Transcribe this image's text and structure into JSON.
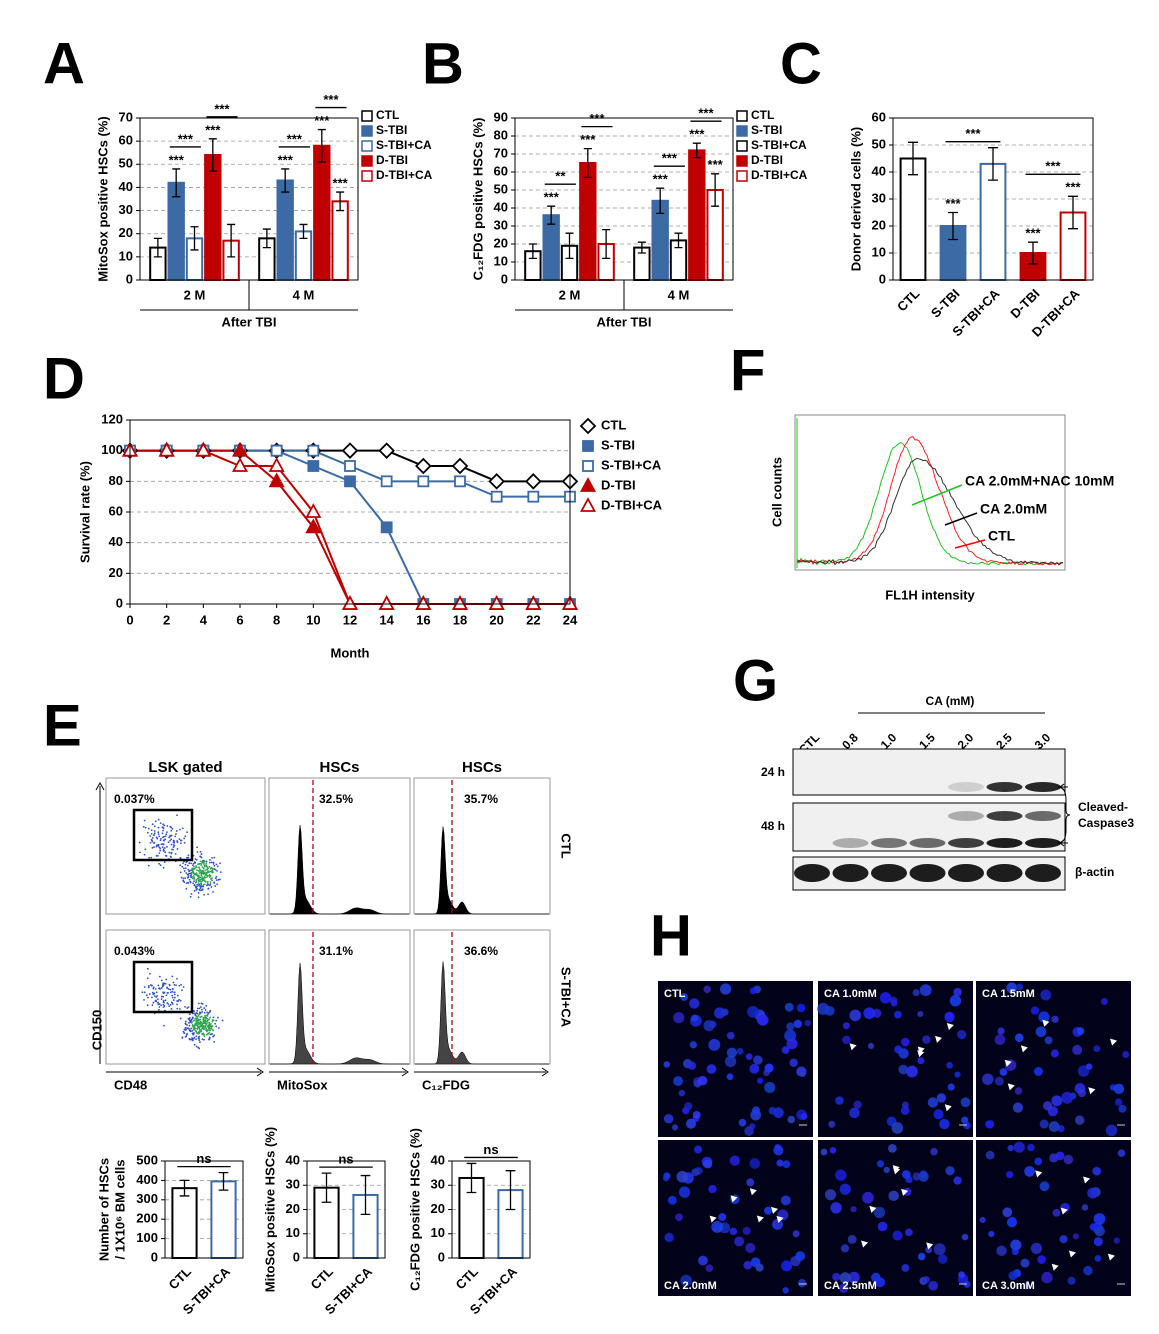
{
  "chart_data": [
    {
      "type": "bar",
      "panel_label": "A",
      "ylabel": "MitoSox positive HSCs (%)",
      "xlabel": "After TBI",
      "categories": [
        "2 M",
        "4 M"
      ],
      "series": [
        {
          "name": "CTL",
          "color": "#000000",
          "filled": false,
          "values": [
            14,
            18
          ],
          "errors": [
            4,
            4
          ],
          "significance": [
            null,
            null
          ]
        },
        {
          "name": "S-TBI",
          "color": "#3b6aa5",
          "filled": true,
          "values": [
            42,
            43
          ],
          "errors": [
            6,
            5
          ],
          "significance": [
            "***",
            "***"
          ]
        },
        {
          "name": "S-TBI+CA",
          "color": "#3b6aa5",
          "filled": false,
          "values": [
            18,
            21
          ],
          "errors": [
            5,
            3
          ],
          "significance": [
            null,
            null
          ]
        },
        {
          "name": "D-TBI",
          "color": "#c00000",
          "filled": true,
          "values": [
            54,
            58
          ],
          "errors": [
            7,
            7
          ],
          "significance": [
            "***",
            "***"
          ]
        },
        {
          "name": "D-TBI+CA",
          "color": "#c00000",
          "filled": false,
          "values": [
            17,
            34
          ],
          "errors": [
            7,
            4
          ],
          "significance": [
            null,
            "***"
          ]
        }
      ],
      "brackets": [
        {
          "label": "***",
          "category": 0,
          "series": [
            1,
            2
          ]
        },
        {
          "label": "***",
          "category": 0,
          "series": [
            3,
            4
          ]
        },
        {
          "label": "***",
          "category": 1,
          "series": [
            1,
            2
          ]
        },
        {
          "label": "***",
          "category": 1,
          "series": [
            3,
            4
          ]
        }
      ],
      "ylim": [
        0,
        70
      ],
      "yticks": [
        0,
        10,
        20,
        30,
        40,
        50,
        60,
        70
      ],
      "grid": true
    },
    {
      "type": "bar",
      "panel_label": "B",
      "ylabel": "C₁₂FDG positive HSCs (%)",
      "xlabel": "After TBI",
      "categories": [
        "2 M",
        "4 M"
      ],
      "series": [
        {
          "name": "CTL",
          "color": "#000000",
          "filled": false,
          "values": [
            16,
            18
          ],
          "errors": [
            4,
            3
          ],
          "significance": [
            null,
            null
          ]
        },
        {
          "name": "S-TBI",
          "color": "#3b6aa5",
          "filled": true,
          "values": [
            36,
            44
          ],
          "errors": [
            5,
            7
          ],
          "significance": [
            "***",
            "***"
          ]
        },
        {
          "name": "S-TBI+CA",
          "color": "#000000",
          "filled": false,
          "values": [
            19,
            22
          ],
          "errors": [
            7,
            4
          ],
          "significance": [
            null,
            null
          ]
        },
        {
          "name": "D-TBI",
          "color": "#c00000",
          "filled": true,
          "values": [
            65,
            72
          ],
          "errors": [
            8,
            4
          ],
          "significance": [
            "***",
            "***"
          ]
        },
        {
          "name": "D-TBI+CA",
          "color": "#c00000",
          "filled": false,
          "values": [
            20,
            50
          ],
          "errors": [
            8,
            9
          ],
          "significance": [
            null,
            "***"
          ]
        }
      ],
      "brackets": [
        {
          "label": "**",
          "category": 0,
          "series": [
            1,
            2
          ]
        },
        {
          "label": "***",
          "category": 0,
          "series": [
            3,
            4
          ]
        },
        {
          "label": "***",
          "category": 1,
          "series": [
            1,
            2
          ]
        },
        {
          "label": "***",
          "category": 1,
          "series": [
            3,
            4
          ]
        }
      ],
      "ylim": [
        0,
        90
      ],
      "yticks": [
        0,
        10,
        20,
        30,
        40,
        50,
        60,
        70,
        80,
        90
      ],
      "grid": true
    },
    {
      "type": "bar",
      "panel_label": "C",
      "ylabel": "Donor derived cells (%)",
      "categories": [
        "CTL",
        "S-TBI",
        "S-TBI+CA",
        "D-TBI",
        "D-TBI+CA"
      ],
      "values": [
        45,
        20,
        43,
        10,
        25
      ],
      "errors": [
        6,
        5,
        6,
        4,
        6
      ],
      "colors": [
        "#000000",
        "#3b6aa5",
        "#3b6aa5",
        "#c00000",
        "#c00000"
      ],
      "filled": [
        false,
        true,
        false,
        true,
        false
      ],
      "significance": [
        null,
        "***",
        null,
        "***",
        "***"
      ],
      "brackets": [
        {
          "label": "***",
          "bars": [
            1,
            2
          ]
        },
        {
          "label": "***",
          "bars": [
            3,
            4
          ]
        }
      ],
      "ylim": [
        0,
        60
      ],
      "yticks": [
        0,
        10,
        20,
        30,
        40,
        50,
        60
      ],
      "grid": true
    },
    {
      "type": "line",
      "panel_label": "D",
      "ylabel": "Survival rate (%)",
      "xlabel": "Month",
      "x": [
        0,
        2,
        4,
        6,
        8,
        10,
        12,
        14,
        16,
        18,
        20,
        22,
        24
      ],
      "series": [
        {
          "name": "CTL",
          "color": "#000000",
          "marker": "diamond",
          "filled": false,
          "values": [
            100,
            100,
            100,
            100,
            100,
            100,
            100,
            100,
            90,
            90,
            80,
            80,
            80
          ]
        },
        {
          "name": "S-TBI",
          "color": "#3b6aa5",
          "marker": "square",
          "filled": true,
          "values": [
            100,
            100,
            100,
            100,
            100,
            90,
            80,
            50,
            0,
            0,
            0,
            0,
            0
          ]
        },
        {
          "name": "S-TBI+CA",
          "color": "#3b6aa5",
          "marker": "square",
          "filled": false,
          "values": [
            100,
            100,
            100,
            100,
            100,
            100,
            90,
            80,
            80,
            80,
            70,
            70,
            70
          ]
        },
        {
          "name": "D-TBI",
          "color": "#c00000",
          "marker": "triangle",
          "filled": true,
          "values": [
            100,
            100,
            100,
            100,
            80,
            50,
            0,
            0,
            0,
            0,
            0,
            0,
            0
          ]
        },
        {
          "name": "D-TBI+CA",
          "color": "#c00000",
          "marker": "triangle",
          "filled": false,
          "values": [
            100,
            100,
            100,
            90,
            90,
            60,
            0,
            0,
            0,
            0,
            0,
            0,
            0
          ]
        }
      ],
      "xlim": [
        0,
        24
      ],
      "xticks": [
        0,
        2,
        4,
        6,
        8,
        10,
        12,
        14,
        16,
        18,
        20,
        22,
        24
      ],
      "ylim": [
        0,
        120
      ],
      "yticks": [
        0,
        20,
        40,
        60,
        80,
        100,
        120
      ],
      "grid": true
    },
    {
      "type": "bar",
      "ylabel": [
        "Number of HSCs",
        "/ 1X10⁶ BM cells"
      ],
      "categories": [
        "CTL",
        "S-TBI+CA"
      ],
      "values": [
        360,
        395
      ],
      "errors": [
        40,
        45
      ],
      "colors": [
        "#000000",
        "#3b6aa5"
      ],
      "filled": [
        false,
        false
      ],
      "significance": [
        null,
        null
      ],
      "brackets": [
        {
          "label": "ns",
          "bars": [
            0,
            1
          ]
        }
      ],
      "ylim": [
        0,
        500
      ],
      "yticks": [
        0,
        100,
        200,
        300,
        400,
        500
      ],
      "grid": true
    },
    {
      "type": "bar",
      "ylabel": "MitoSox positive HSCs (%)",
      "categories": [
        "CTL",
        "S-TBI+CA"
      ],
      "values": [
        29,
        26
      ],
      "errors": [
        6,
        8
      ],
      "colors": [
        "#000000",
        "#3b6aa5"
      ],
      "filled": [
        false,
        false
      ],
      "significance": [
        null,
        null
      ],
      "brackets": [
        {
          "label": "ns",
          "bars": [
            0,
            1
          ]
        }
      ],
      "ylim": [
        0,
        40
      ],
      "yticks": [
        0,
        10,
        20,
        30,
        40
      ],
      "grid": true
    },
    {
      "type": "bar",
      "ylabel": "C₁₂FDG positive HSCs (%)",
      "categories": [
        "CTL",
        "S-TBI+CA"
      ],
      "values": [
        33,
        28
      ],
      "errors": [
        6,
        8
      ],
      "colors": [
        "#000000",
        "#3b6aa5"
      ],
      "filled": [
        false,
        false
      ],
      "significance": [
        null,
        null
      ],
      "brackets": [
        {
          "label": "ns",
          "bars": [
            0,
            1
          ]
        }
      ],
      "ylim": [
        0,
        40
      ],
      "yticks": [
        0,
        10,
        20,
        30,
        40
      ],
      "grid": true
    }
  ],
  "flow_cytometry": {
    "panel_label": "E",
    "column_titles": [
      "LSK gated",
      "HSCs",
      "HSCs"
    ],
    "row_labels": [
      "CTL",
      "S-TBI+CA"
    ],
    "percentages": [
      [
        "0.037%",
        "32.5%",
        "35.7%"
      ],
      [
        "0.043%",
        "31.1%",
        "36.6%"
      ]
    ],
    "x_axis_labels": [
      "CD48",
      "MitoSox",
      "C₁₂FDG"
    ],
    "y_axis_label": "CD150"
  },
  "histogram_overlay": {
    "panel_label": "F",
    "y_axis_label": "Cell counts",
    "x_axis_label": "FL1H intensity",
    "curve_labels": [
      "CA 2.0mM+NAC 10mM",
      "CA 2.0mM",
      "CTL"
    ]
  },
  "western_blot": {
    "panel_label": "G",
    "treatment_label": "CA (mM)",
    "lanes": [
      "CTL",
      "0.8",
      "1.0",
      "1.5",
      "2.0",
      "2.5",
      "3.0"
    ],
    "rows": [
      "24 h",
      "48 h"
    ],
    "target_label": [
      "Cleaved-",
      "Caspase3"
    ],
    "loading_label": "β-actin"
  },
  "microscopy": {
    "panel_label": "H",
    "image_labels": [
      "CTL",
      "CA 1.0mM",
      "CA 1.5mM",
      "CA 2.0mM",
      "CA 2.5mM",
      "CA 3.0mM"
    ]
  }
}
